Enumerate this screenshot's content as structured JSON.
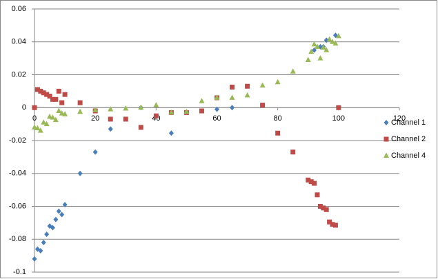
{
  "chart_data": {
    "type": "scatter",
    "xlim": [
      0,
      120
    ],
    "xticks": [
      0,
      20,
      40,
      60,
      80,
      100,
      120
    ],
    "ylim": [
      -0.1,
      0.06
    ],
    "yticks": [
      -0.1,
      -0.08,
      -0.06,
      -0.04,
      -0.02,
      0,
      0.02,
      0.04,
      0.06
    ],
    "grid": true,
    "legend": "right",
    "series": [
      {
        "name": "Channel 1",
        "color": "#4a7ebb",
        "marker": "diamond",
        "x": [
          0,
          1,
          2,
          3,
          4,
          5,
          6,
          7,
          8,
          9,
          10,
          15,
          20,
          25,
          35,
          45,
          60,
          65,
          92,
          94,
          95,
          96,
          99
        ],
        "values": [
          -0.092,
          -0.086,
          -0.087,
          -0.082,
          -0.077,
          -0.072,
          -0.073,
          -0.068,
          -0.063,
          -0.065,
          -0.059,
          -0.04,
          -0.027,
          -0.013,
          0,
          -0.0155,
          -0.001,
          0,
          0.035,
          0.037,
          0.037,
          0.041,
          0.044
        ]
      },
      {
        "name": "Channel 2",
        "color": "#be4b48",
        "marker": "square",
        "x": [
          0,
          1,
          2,
          3,
          4,
          5,
          6,
          7,
          8,
          9,
          10,
          15,
          20,
          25,
          30,
          35,
          40,
          45,
          50,
          55,
          60,
          65,
          70,
          75,
          80,
          85,
          90,
          91,
          92,
          93,
          94,
          95,
          96,
          97,
          98,
          99,
          100
        ],
        "values": [
          0,
          0.011,
          0.01,
          0.009,
          0.008,
          0.007,
          0.005,
          0.005,
          0.01,
          0.003,
          0.008,
          0.003,
          -0.002,
          -0.007,
          -0.007,
          -0.012,
          -0.005,
          -0.003,
          -0.003,
          -0.002,
          0.006,
          0.0125,
          0.013,
          0.0015,
          -0.0155,
          -0.027,
          -0.044,
          -0.045,
          -0.046,
          -0.053,
          -0.06,
          -0.061,
          -0.062,
          -0.0695,
          -0.071,
          -0.0715,
          0
        ]
      },
      {
        "name": "Channel 4",
        "color": "#98b954",
        "marker": "triangle",
        "x": [
          0,
          1,
          2,
          3,
          4,
          5,
          6,
          7,
          8,
          9,
          10,
          15,
          20,
          25,
          30,
          35,
          40,
          45,
          50,
          55,
          60,
          65,
          70,
          75,
          80,
          85,
          90,
          91,
          92,
          93,
          94,
          95,
          96,
          97,
          98,
          99,
          100
        ],
        "values": [
          -0.012,
          -0.0125,
          -0.014,
          -0.009,
          -0.01,
          -0.0055,
          -0.006,
          -0.0075,
          -0.002,
          -0.0035,
          -0.004,
          -0.0025,
          -0.0015,
          -0.001,
          -0.0005,
          0,
          0.0015,
          -0.003,
          -0.0025,
          0.004,
          0.006,
          0.006,
          0.0075,
          0.0135,
          0.0155,
          0.022,
          0.029,
          0.034,
          0.0385,
          0.037,
          0.03,
          0.0365,
          0.035,
          0.0415,
          0.04,
          0.039,
          0.0435
        ]
      }
    ]
  }
}
